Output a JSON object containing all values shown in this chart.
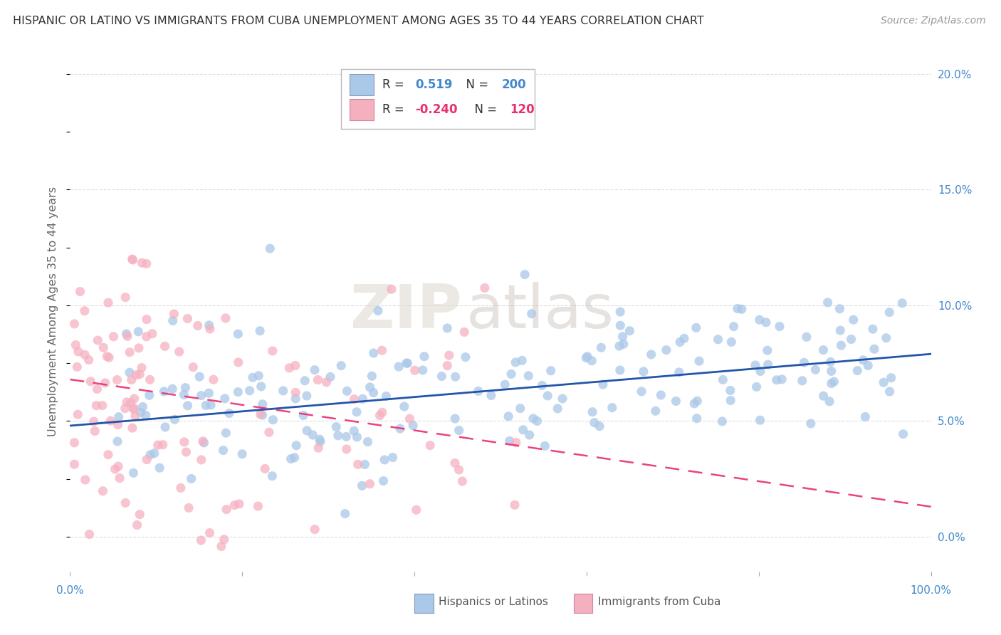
{
  "title": "HISPANIC OR LATINO VS IMMIGRANTS FROM CUBA UNEMPLOYMENT AMONG AGES 35 TO 44 YEARS CORRELATION CHART",
  "source": "Source: ZipAtlas.com",
  "ylabel": "Unemployment Among Ages 35 to 44 years",
  "xlim": [
    0,
    100
  ],
  "ylim": [
    -1.5,
    21
  ],
  "xticks": [
    0,
    20,
    40,
    60,
    80,
    100
  ],
  "xticklabels_ends": [
    "0.0%",
    "100.0%"
  ],
  "yticks": [
    0,
    5,
    10,
    15,
    20
  ],
  "yticklabels": [
    "0.0%",
    "5.0%",
    "10.0%",
    "15.0%",
    "20.0%"
  ],
  "blue_color": "#aac8e8",
  "pink_color": "#f5b0c0",
  "blue_line_color": "#2255aa",
  "pink_line_color": "#e83070",
  "r_blue": 0.519,
  "n_blue": 200,
  "r_pink": -0.24,
  "n_pink": 120,
  "watermark_zip": "ZIP",
  "watermark_atlas": "atlas",
  "blue_intercept": 4.8,
  "blue_slope": 0.031,
  "pink_intercept": 6.8,
  "pink_slope": -0.055,
  "seed_blue": 42,
  "seed_pink": 7,
  "grid_color": "#dddddd",
  "ytick_color": "#4488cc",
  "xtick_color": "#4488cc",
  "ylabel_color": "#666666",
  "legend_label_blue": "Hispanics or Latinos",
  "legend_label_pink": "Immigrants from Cuba"
}
